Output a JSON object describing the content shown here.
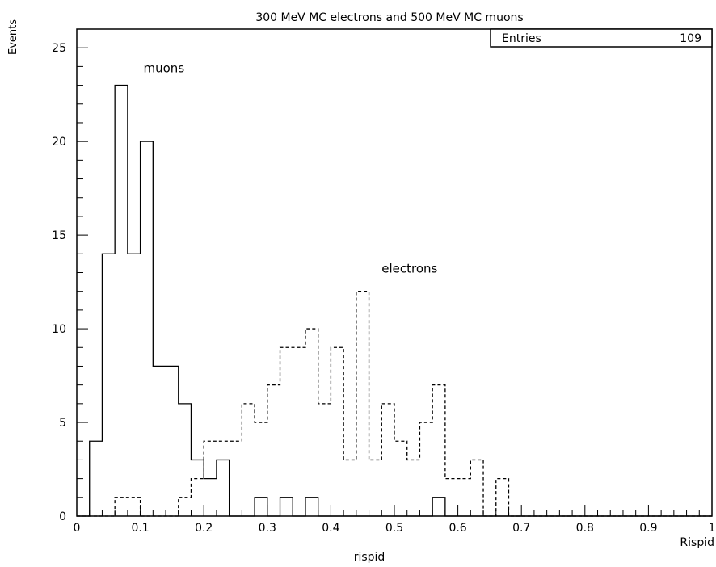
{
  "chart_data": {
    "type": "histogram",
    "title": "300 MeV MC electrons and 500 MeV MC muons",
    "xlabel": "rispid",
    "xaxis_name": "Rispid",
    "ylabel": "Events",
    "xlim": [
      0,
      1
    ],
    "ylim": [
      0,
      26
    ],
    "grid": false,
    "stats_box": {
      "label": "Entries",
      "value": "109"
    },
    "x_ticks": [
      "0",
      "0.1",
      "0.2",
      "0.3",
      "0.4",
      "0.5",
      "0.6",
      "0.7",
      "0.8",
      "0.9",
      "1"
    ],
    "y_ticks": [
      "0",
      "5",
      "10",
      "15",
      "20",
      "25"
    ],
    "bin_edges_start": 0,
    "bin_width": 0.02,
    "annotations": [
      {
        "text": "muons",
        "x": 0.105,
        "y": 23.7
      },
      {
        "text": "electrons",
        "x": 0.48,
        "y": 13.0
      }
    ],
    "series": [
      {
        "name": "muons",
        "line_style": "solid",
        "values": [
          0,
          4,
          14,
          23,
          14,
          20,
          8,
          8,
          6,
          3,
          2,
          3,
          0,
          0,
          1,
          0,
          1,
          0,
          1,
          0,
          0,
          0,
          0,
          0,
          0,
          0,
          0,
          0,
          1,
          0,
          0,
          0,
          0,
          0,
          0,
          0,
          0,
          0,
          0,
          0,
          0,
          0,
          0,
          0,
          0,
          0,
          0,
          0,
          0,
          0
        ]
      },
      {
        "name": "electrons",
        "line_style": "dashed",
        "values": [
          0,
          0,
          0,
          1,
          1,
          0,
          0,
          0,
          1,
          2,
          4,
          4,
          4,
          6,
          5,
          7,
          9,
          9,
          10,
          6,
          9,
          3,
          12,
          3,
          6,
          4,
          3,
          5,
          7,
          2,
          2,
          3,
          0,
          2,
          0,
          0,
          0,
          0,
          0,
          0,
          0,
          0,
          0,
          0,
          0,
          0,
          0,
          0,
          0,
          0
        ]
      }
    ]
  }
}
